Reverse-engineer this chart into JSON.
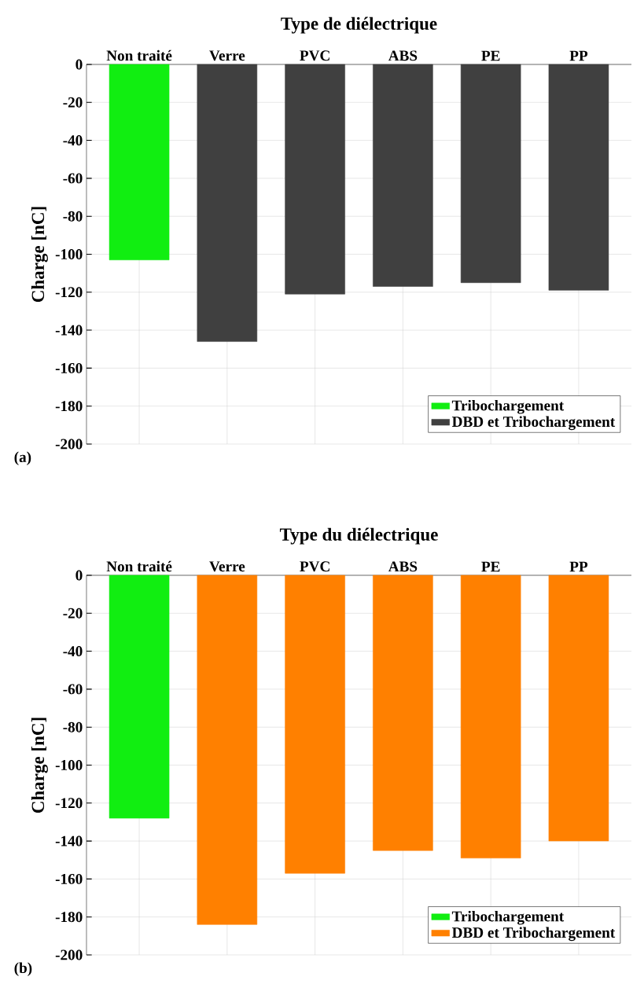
{
  "chart_data": [
    {
      "type": "bar",
      "title": "Type de diélectrique",
      "ylabel": "Charge [nC]",
      "categories": [
        "Non traité",
        "Verre",
        "PVC",
        "ABS",
        "PE",
        "PP"
      ],
      "series": [
        {
          "name": "Tribochargement",
          "color": "#11ee11",
          "values": [
            -103,
            null,
            null,
            null,
            null,
            null
          ]
        },
        {
          "name": "DBD et Tribochargement",
          "color": "#404040",
          "values": [
            null,
            -146,
            -121,
            -117,
            -115,
            -119
          ]
        }
      ],
      "ylim": [
        -200,
        0
      ],
      "yticks": [
        -200,
        -180,
        -160,
        -140,
        -120,
        -100,
        -80,
        -60,
        -40,
        -20,
        0
      ],
      "grid": true,
      "legend": "bottom right",
      "annotations": [
        "(a)"
      ]
    },
    {
      "type": "bar",
      "title": "Type du diélectrique",
      "ylabel": "Charge [nC]",
      "categories": [
        "Non traité",
        "Verre",
        "PVC",
        "ABS",
        "PE",
        "PP"
      ],
      "series": [
        {
          "name": "Tribochargement",
          "color": "#11ee11",
          "values": [
            -128,
            null,
            null,
            null,
            null,
            null
          ]
        },
        {
          "name": "DBD et Tribochargement",
          "color": "#ff8000",
          "values": [
            null,
            -184,
            -157,
            -145,
            -149,
            -140
          ]
        }
      ],
      "ylim": [
        -200,
        0
      ],
      "yticks": [
        -200,
        -180,
        -160,
        -140,
        -120,
        -100,
        -80,
        -60,
        -40,
        -20,
        0
      ],
      "grid": true,
      "legend": "bottom right",
      "annotations": [
        "(b)"
      ]
    }
  ]
}
